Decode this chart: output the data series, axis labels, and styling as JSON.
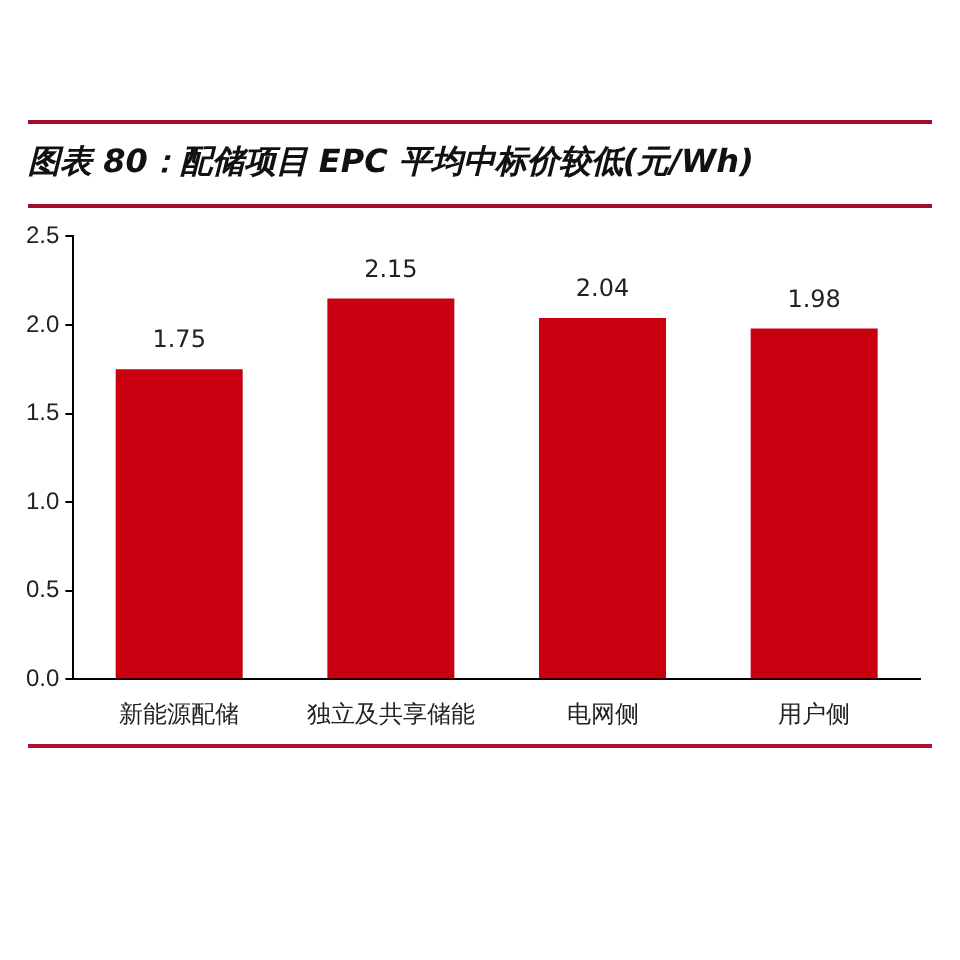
{
  "chart_data": {
    "type": "bar",
    "title": "图表 80：配储项目 EPC 平均中标价较低(元/Wh)",
    "categories": [
      "新能源配储",
      "独立及共享储能",
      "电网侧",
      "用户侧"
    ],
    "values": [
      1.75,
      2.15,
      2.04,
      1.98
    ],
    "color": "#c8000f",
    "ylim": [
      0,
      2.5
    ],
    "yticks": [
      {
        "value": 0,
        "label": "0.0"
      },
      0.5,
      {
        "value": 1,
        "label": "1.0"
      },
      1.5,
      {
        "value": 2,
        "label": "2.0"
      },
      2.5
    ],
    "data_labels": true,
    "grid": false,
    "legend": false
  }
}
